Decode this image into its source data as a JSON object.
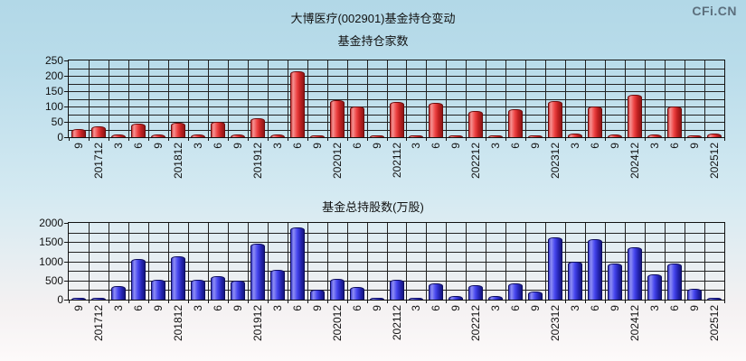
{
  "header": {
    "title": "大博医疗(002901)基金持仓变动",
    "logo": "CFi.CN"
  },
  "colors": {
    "background_top": "#b2d8e7",
    "background_bottom": "#fdfafa",
    "grid": "#222222",
    "red_bar": "#e03030",
    "blue_bar": "#3535d5",
    "text": "#111111",
    "logo_text": "#5c6f7d"
  },
  "chart_data": [
    {
      "type": "bar",
      "title": "基金持仓家数",
      "xlabel": "",
      "ylabel": "",
      "ylim": [
        0,
        250
      ],
      "ytick_step": 50,
      "minor_step": 25,
      "grid": "on",
      "legend_position": "none",
      "bar_style": "red",
      "categories": [
        "9",
        "201712",
        "3",
        "6",
        "9",
        "201812",
        "3",
        "6",
        "9",
        "201912",
        "3",
        "6",
        "9",
        "202012",
        "6",
        "9",
        "202112",
        "3",
        "6",
        "9",
        "202212",
        "3",
        "6",
        "9",
        "202312",
        "3",
        "6",
        "9",
        "202412",
        "3",
        "6",
        "9",
        "202512"
      ],
      "values": [
        26,
        36,
        8,
        44,
        8,
        47,
        8,
        51,
        9,
        61,
        10,
        214,
        5,
        121,
        101,
        4,
        116,
        6,
        113,
        6,
        86,
        7,
        90,
        7,
        118,
        11,
        101,
        8,
        138,
        8,
        101,
        3,
        11
      ]
    },
    {
      "type": "bar",
      "title": "基金总持股数(万股)",
      "xlabel": "",
      "ylabel": "",
      "ylim": [
        0,
        2000
      ],
      "ytick_step": 500,
      "minor_step": 250,
      "grid": "on",
      "legend_position": "none",
      "bar_style": "blue",
      "categories": [
        "9",
        "201712",
        "3",
        "6",
        "9",
        "201812",
        "3",
        "6",
        "9",
        "201912",
        "3",
        "6",
        "9",
        "202012",
        "6",
        "9",
        "202112",
        "3",
        "6",
        "9",
        "202212",
        "3",
        "6",
        "9",
        "202312",
        "3",
        "6",
        "9",
        "202412",
        "3",
        "6",
        "9",
        "202512"
      ],
      "values": [
        25,
        30,
        350,
        1060,
        525,
        1120,
        510,
        610,
        500,
        1470,
        780,
        1880,
        260,
        545,
        330,
        20,
        510,
        25,
        430,
        90,
        370,
        90,
        430,
        210,
        1630,
        980,
        1570,
        950,
        1360,
        670,
        940,
        280,
        15
      ]
    }
  ]
}
